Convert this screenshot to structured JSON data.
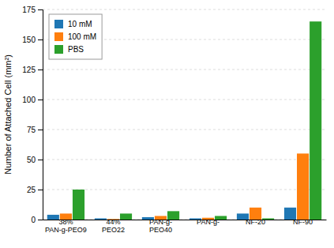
{
  "chart_data": {
    "type": "bar",
    "y_label": "Number of Attached Cell (mm²)",
    "categories": [
      "38%\nPAN-g-PEO9",
      "44%\nPEO22",
      "PAN-g-\nPEO40",
      "PAN-g-",
      "NF-20",
      "NF-90"
    ],
    "series": [
      {
        "name": "10 mM",
        "values": [
          4.0,
          1.0,
          2.0,
          1.0,
          5.0,
          10.0
        ]
      },
      {
        "name": "100 mM",
        "values": [
          5.0,
          0.5,
          3.0,
          1.5,
          10.0,
          55.0
        ]
      },
      {
        "name": "PBS",
        "values": [
          25.0,
          5.0,
          7.0,
          3.0,
          1.0,
          165.0
        ]
      }
    ],
    "ylim": [
      0,
      175
    ],
    "yticks": [
      0,
      25,
      50,
      75,
      100,
      125,
      150,
      175
    ],
    "grid": true,
    "legend": "upper left"
  }
}
